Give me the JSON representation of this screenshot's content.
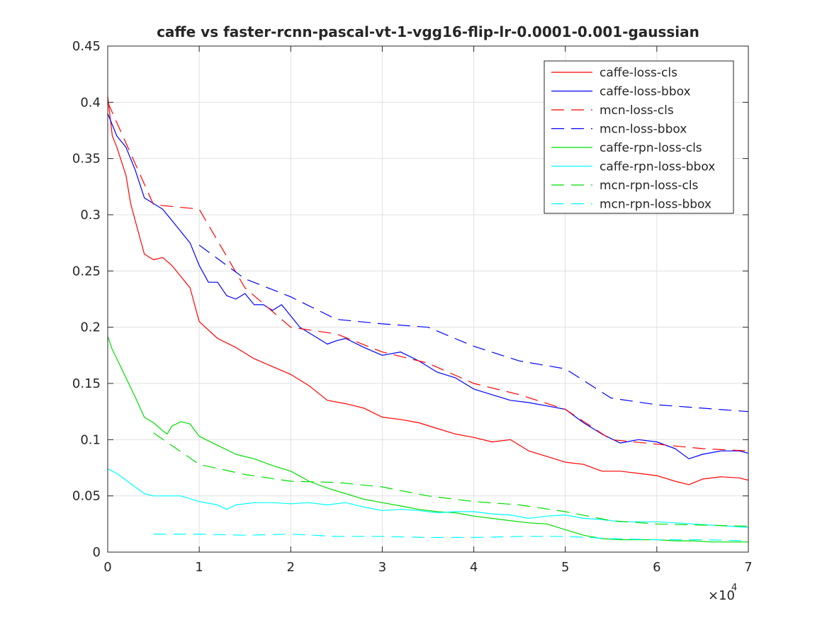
{
  "chart_data": {
    "type": "line",
    "title": "caffe vs faster-rcnn-pascal-vt-1-vgg16-flip-lr-0.0001-0.001-gaussian",
    "xlabel": "",
    "ylabel": "",
    "xlim": [
      0,
      70000
    ],
    "ylim": [
      0,
      0.45
    ],
    "x_ticks": [
      0,
      10000,
      20000,
      30000,
      40000,
      50000,
      60000,
      70000
    ],
    "x_tick_labels": [
      "0",
      "1",
      "2",
      "3",
      "4",
      "5",
      "6",
      "7"
    ],
    "x_exponent_label": "×10",
    "x_exponent_power": "4",
    "y_ticks": [
      0,
      0.05,
      0.1,
      0.15,
      0.2,
      0.25,
      0.3,
      0.35,
      0.4,
      0.45
    ],
    "y_tick_labels": [
      "0",
      "0.05",
      "0.1",
      "0.15",
      "0.2",
      "0.25",
      "0.3",
      "0.35",
      "0.4",
      "0.45"
    ],
    "grid": true,
    "legend_position": "top-right",
    "series": [
      {
        "name": "caffe-loss-cls",
        "color": "#ff0000",
        "style": "solid",
        "x": [
          0,
          500,
          1000,
          2000,
          2500,
          3000,
          4000,
          5000,
          6000,
          7000,
          8000,
          9000,
          10000,
          12000,
          14000,
          16000,
          18000,
          20000,
          22000,
          24000,
          26000,
          28000,
          30000,
          32000,
          34000,
          36000,
          38000,
          40000,
          42000,
          44000,
          46000,
          48000,
          50000,
          52000,
          54000,
          56000,
          58000,
          60000,
          62000,
          63500,
          65000,
          67000,
          69000,
          70000
        ],
        "y": [
          0.405,
          0.37,
          0.36,
          0.335,
          0.31,
          0.295,
          0.265,
          0.26,
          0.262,
          0.255,
          0.245,
          0.235,
          0.205,
          0.19,
          0.182,
          0.172,
          0.165,
          0.158,
          0.148,
          0.135,
          0.132,
          0.128,
          0.12,
          0.118,
          0.115,
          0.11,
          0.105,
          0.102,
          0.098,
          0.1,
          0.09,
          0.085,
          0.08,
          0.078,
          0.072,
          0.072,
          0.07,
          0.068,
          0.063,
          0.06,
          0.065,
          0.067,
          0.066,
          0.064
        ]
      },
      {
        "name": "caffe-loss-bbox",
        "color": "#0000ff",
        "style": "solid",
        "x": [
          0,
          500,
          1000,
          2000,
          3000,
          4000,
          5000,
          6000,
          7000,
          8000,
          9000,
          10000,
          11000,
          12000,
          13000,
          14000,
          15000,
          16000,
          17000,
          18000,
          19000,
          20000,
          21000,
          22000,
          23000,
          24000,
          25000,
          26000,
          28000,
          30000,
          32000,
          34000,
          36000,
          38000,
          40000,
          42000,
          44000,
          46000,
          48000,
          50000,
          52000,
          54000,
          56000,
          58000,
          60000,
          62000,
          63500,
          65000,
          67000,
          69000,
          70000
        ],
        "y": [
          0.39,
          0.38,
          0.37,
          0.36,
          0.34,
          0.315,
          0.31,
          0.305,
          0.295,
          0.285,
          0.275,
          0.255,
          0.24,
          0.24,
          0.228,
          0.225,
          0.23,
          0.22,
          0.22,
          0.215,
          0.22,
          0.21,
          0.2,
          0.195,
          0.19,
          0.185,
          0.188,
          0.19,
          0.182,
          0.175,
          0.178,
          0.17,
          0.16,
          0.155,
          0.145,
          0.14,
          0.135,
          0.133,
          0.13,
          0.127,
          0.115,
          0.105,
          0.097,
          0.1,
          0.098,
          0.092,
          0.083,
          0.087,
          0.09,
          0.09,
          0.088
        ]
      },
      {
        "name": "mcn-loss-cls",
        "color": "#ff0000",
        "style": "dashed",
        "x": [
          0,
          5000,
          10000,
          15000,
          20000,
          25000,
          30000,
          35000,
          40000,
          45000,
          50000,
          55000,
          60000,
          65000,
          70000
        ],
        "y": [
          0.4,
          0.309,
          0.305,
          0.235,
          0.2,
          0.194,
          0.178,
          0.168,
          0.15,
          0.14,
          0.127,
          0.1,
          0.096,
          0.092,
          0.09
        ]
      },
      {
        "name": "mcn-loss-bbox",
        "color": "#0000ff",
        "style": "dashed",
        "x": [
          10000,
          15000,
          20000,
          25000,
          30000,
          35000,
          40000,
          45000,
          50000,
          55000,
          60000,
          65000,
          70000
        ],
        "y": [
          0.273,
          0.243,
          0.227,
          0.207,
          0.203,
          0.2,
          0.183,
          0.17,
          0.163,
          0.137,
          0.131,
          0.128,
          0.125
        ]
      },
      {
        "name": "caffe-rpn-loss-cls",
        "color": "#00dd00",
        "style": "solid",
        "x": [
          0,
          500,
          1000,
          2000,
          3000,
          4000,
          5000,
          6000,
          6500,
          7000,
          8000,
          9000,
          10000,
          12000,
          14000,
          16000,
          18000,
          20000,
          22000,
          24000,
          26000,
          28000,
          30000,
          32000,
          34000,
          36000,
          38000,
          40000,
          42000,
          44000,
          46000,
          48000,
          50000,
          52000,
          54000,
          56000,
          58000,
          60000,
          62000,
          64000,
          66000,
          68000,
          70000
        ],
        "y": [
          0.192,
          0.18,
          0.172,
          0.155,
          0.138,
          0.12,
          0.115,
          0.108,
          0.105,
          0.112,
          0.116,
          0.114,
          0.103,
          0.095,
          0.087,
          0.083,
          0.077,
          0.072,
          0.063,
          0.057,
          0.052,
          0.047,
          0.044,
          0.041,
          0.038,
          0.036,
          0.035,
          0.032,
          0.03,
          0.028,
          0.026,
          0.025,
          0.02,
          0.015,
          0.012,
          0.011,
          0.011,
          0.011,
          0.01,
          0.01,
          0.009,
          0.009,
          0.009
        ]
      },
      {
        "name": "caffe-rpn-loss-bbox",
        "color": "#00ffff",
        "style": "solid",
        "x": [
          0,
          1000,
          2000,
          3000,
          4000,
          5000,
          6000,
          8000,
          10000,
          12000,
          13000,
          14000,
          16000,
          18000,
          20000,
          22000,
          24000,
          26000,
          28000,
          30000,
          32000,
          34000,
          36000,
          38000,
          40000,
          42000,
          44000,
          46000,
          48000,
          50000,
          52000,
          54000,
          56000,
          58000,
          60000,
          62000,
          64000,
          66000,
          68000,
          70000
        ],
        "y": [
          0.074,
          0.07,
          0.064,
          0.058,
          0.052,
          0.05,
          0.05,
          0.05,
          0.045,
          0.042,
          0.038,
          0.042,
          0.044,
          0.044,
          0.043,
          0.044,
          0.042,
          0.044,
          0.04,
          0.037,
          0.038,
          0.037,
          0.035,
          0.036,
          0.036,
          0.034,
          0.033,
          0.03,
          0.032,
          0.033,
          0.03,
          0.029,
          0.027,
          0.027,
          0.027,
          0.026,
          0.025,
          0.024,
          0.023,
          0.022
        ]
      },
      {
        "name": "mcn-rpn-loss-cls",
        "color": "#00dd00",
        "style": "dashed",
        "x": [
          5000,
          10000,
          15000,
          20000,
          25000,
          30000,
          35000,
          40000,
          45000,
          50000,
          55000,
          60000,
          65000,
          70000
        ],
        "y": [
          0.106,
          0.078,
          0.069,
          0.063,
          0.062,
          0.058,
          0.05,
          0.045,
          0.042,
          0.036,
          0.028,
          0.025,
          0.024,
          0.023
        ]
      },
      {
        "name": "mcn-rpn-loss-bbox",
        "color": "#00ffff",
        "style": "dashed",
        "x": [
          5000,
          10000,
          15000,
          20000,
          25000,
          30000,
          35000,
          40000,
          45000,
          50000,
          55000,
          60000,
          65000,
          70000
        ],
        "y": [
          0.016,
          0.016,
          0.015,
          0.016,
          0.014,
          0.014,
          0.013,
          0.013,
          0.014,
          0.014,
          0.012,
          0.011,
          0.011,
          0.01
        ]
      }
    ]
  }
}
